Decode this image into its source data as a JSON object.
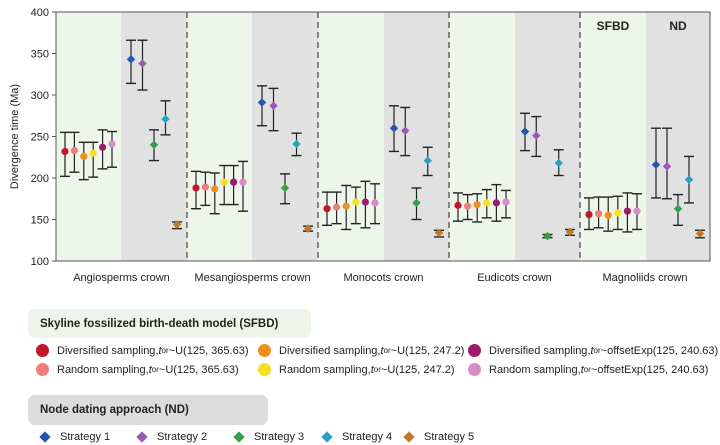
{
  "chart_data": {
    "type": "scatter",
    "ylabel": "Divergence time (Ma)",
    "ylim": [
      100,
      400
    ],
    "yticks": [
      100,
      150,
      200,
      250,
      300,
      350,
      400
    ],
    "panel_labels": [
      "SFBD",
      "ND"
    ],
    "groups": [
      "Angiosperms crown",
      "Mesangiosperms crown",
      "Monocots crown",
      "Eudicots crown",
      "Magnoliids crown"
    ],
    "colors": {
      "div_u365": "#c0192b",
      "rand_u365": "#f07c7c",
      "div_u247": "#f0901c",
      "rand_u247": "#f5e022",
      "div_exp": "#9c1d6a",
      "rand_exp": "#d88ec4",
      "s1": "#2554a8",
      "s2": "#9b59b6",
      "s3": "#34a047",
      "s4": "#2aa1c0",
      "s5": "#c07a2a"
    },
    "sfbd_series": [
      {
        "key": "div_u365",
        "mean": [
          232,
          188,
          163,
          167,
          156
        ],
        "lo": [
          202,
          163,
          143,
          148,
          138
        ],
        "hi": [
          255,
          208,
          183,
          182,
          176
        ]
      },
      {
        "key": "rand_u365",
        "mean": [
          233,
          189,
          165,
          166,
          157
        ],
        "lo": [
          207,
          167,
          145,
          150,
          140
        ],
        "hi": [
          255,
          207,
          183,
          180,
          177
        ]
      },
      {
        "key": "div_u247",
        "mean": [
          226,
          187,
          166,
          168,
          155
        ],
        "lo": [
          198,
          157,
          138,
          147,
          136
        ],
        "hi": [
          243,
          206,
          191,
          181,
          177
        ]
      },
      {
        "key": "rand_u247",
        "mean": [
          230,
          195,
          171,
          170,
          158
        ],
        "lo": [
          201,
          168,
          145,
          152,
          138
        ],
        "hi": [
          243,
          215,
          189,
          186,
          178
        ]
      },
      {
        "key": "div_exp",
        "mean": [
          237,
          195,
          171,
          170,
          160
        ],
        "lo": [
          211,
          168,
          140,
          148,
          135
        ],
        "hi": [
          258,
          215,
          196,
          192,
          182
        ]
      },
      {
        "key": "rand_exp",
        "mean": [
          241,
          195,
          170,
          171,
          160
        ],
        "lo": [
          213,
          160,
          145,
          152,
          138
        ],
        "hi": [
          256,
          220,
          193,
          185,
          181
        ]
      }
    ],
    "nd_series": [
      {
        "key": "s1",
        "mean": [
          343,
          291,
          260,
          256,
          216
        ],
        "lo": [
          314,
          263,
          232,
          233,
          176
        ],
        "hi": [
          366,
          311,
          287,
          278,
          260
        ]
      },
      {
        "key": "s2",
        "mean": [
          338,
          287,
          257,
          251,
          214
        ],
        "lo": [
          306,
          257,
          227,
          226,
          175
        ],
        "hi": [
          366,
          308,
          285,
          274,
          260
        ]
      },
      {
        "key": "s3",
        "mean": [
          240,
          188,
          170,
          130,
          163
        ],
        "lo": [
          221,
          169,
          150,
          128,
          143
        ],
        "hi": [
          258,
          205,
          188,
          132,
          180
        ]
      },
      {
        "key": "s4",
        "mean": [
          271,
          241,
          221,
          218,
          198
        ],
        "lo": [
          252,
          227,
          203,
          203,
          170
        ],
        "hi": [
          293,
          254,
          237,
          234,
          226
        ]
      },
      {
        "key": "s5",
        "mean": [
          144,
          139,
          134,
          135,
          133
        ],
        "lo": [
          139,
          136,
          129,
          131,
          128
        ],
        "hi": [
          147,
          142,
          137,
          138,
          137
        ]
      }
    ]
  },
  "legend": {
    "sfbd_title": "Skyline fossilized birth-death model (SFBD)",
    "nd_title": "Node dating approach (ND)",
    "sampling": {
      "diversified": "Diversified sampling, ",
      "random": "Random sampling, "
    },
    "t_main": "t",
    "t_sub": "or",
    "priors": {
      "u365": "~U(125, 365.63)",
      "u247": "~U(125, 247.2)",
      "exp": "~offsetExp(125, 240.63)"
    },
    "strategies": [
      "Strategy 1",
      "Strategy 2",
      "Strategy 3",
      "Strategy 4",
      "Strategy 5"
    ]
  }
}
